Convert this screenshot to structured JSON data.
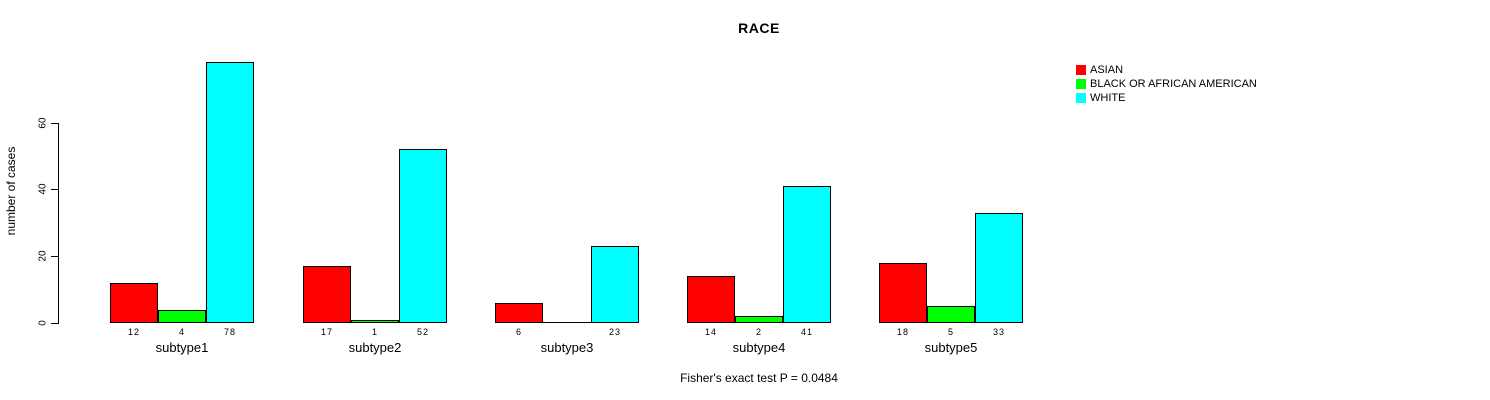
{
  "chart_data": {
    "type": "bar",
    "title": "RACE",
    "ylabel": "number of cases",
    "footer": "Fisher's exact test P = 0.0484",
    "categories": [
      "subtype1",
      "subtype2",
      "subtype3",
      "subtype4",
      "subtype5"
    ],
    "series": [
      {
        "name": "ASIAN",
        "color": "#ff0000",
        "values": [
          12,
          17,
          6,
          14,
          18
        ]
      },
      {
        "name": "BLACK OR AFRICAN AMERICAN",
        "color": "#00ff00",
        "values": [
          4,
          1,
          0,
          2,
          5
        ]
      },
      {
        "name": "WHITE",
        "color": "#00ffff",
        "values": [
          78,
          52,
          23,
          41,
          33
        ]
      }
    ],
    "value_labels": [
      [
        "12",
        "4",
        "78"
      ],
      [
        "17",
        "1",
        "52"
      ],
      [
        "6",
        "",
        "23"
      ],
      [
        "14",
        "2",
        "41"
      ],
      [
        "18",
        "5",
        "33"
      ]
    ],
    "yticks": [
      "0",
      "20",
      "40",
      "60"
    ],
    "ylim": [
      0,
      78
    ],
    "grid": false,
    "legend_position": "top-right",
    "bar_border_color": "#000000",
    "background_color": "#ffffff"
  }
}
